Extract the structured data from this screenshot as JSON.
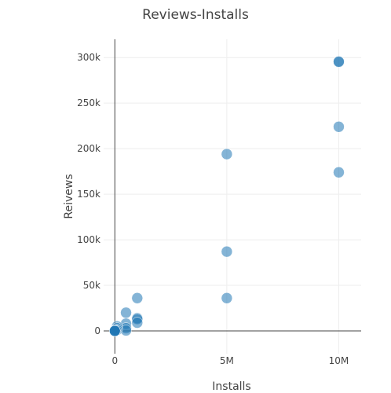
{
  "chart_data": {
    "type": "scatter",
    "title": "Reviews-Installs",
    "xlabel": "Installs",
    "ylabel": "Reivews",
    "xlim": [
      -500000,
      11000000
    ],
    "ylim": [
      -25000,
      320000
    ],
    "xticks": [
      {
        "value": 0,
        "label": "0"
      },
      {
        "value": 5000000,
        "label": "5M"
      },
      {
        "value": 10000000,
        "label": "10M"
      }
    ],
    "yticks": [
      {
        "value": 0,
        "label": "0"
      },
      {
        "value": 50000,
        "label": "50k"
      },
      {
        "value": 100000,
        "label": "100k"
      },
      {
        "value": 150000,
        "label": "150k"
      },
      {
        "value": 200000,
        "label": "200k"
      },
      {
        "value": 250000,
        "label": "250k"
      },
      {
        "value": 300000,
        "label": "300k"
      }
    ],
    "grid": true,
    "series": [
      {
        "color": "#1f77b4",
        "points": [
          {
            "x": 10000000,
            "y": 295000
          },
          {
            "x": 10000000,
            "y": 295500
          },
          {
            "x": 10000000,
            "y": 224000
          },
          {
            "x": 10000000,
            "y": 174000
          },
          {
            "x": 5000000,
            "y": 194000
          },
          {
            "x": 5000000,
            "y": 87000
          },
          {
            "x": 5000000,
            "y": 36000
          },
          {
            "x": 1000000,
            "y": 36000
          },
          {
            "x": 1000000,
            "y": 14000
          },
          {
            "x": 1000000,
            "y": 13000
          },
          {
            "x": 1000000,
            "y": 9000
          },
          {
            "x": 500000,
            "y": 20000
          },
          {
            "x": 500000,
            "y": 8000
          },
          {
            "x": 500000,
            "y": 3000
          },
          {
            "x": 500000,
            "y": 500
          },
          {
            "x": 100000,
            "y": 5000
          },
          {
            "x": 100000,
            "y": 3000
          },
          {
            "x": 100000,
            "y": 1000
          },
          {
            "x": 50000,
            "y": 800
          },
          {
            "x": 10000,
            "y": 300
          },
          {
            "x": 5000,
            "y": 100
          },
          {
            "x": 1000,
            "y": 50
          },
          {
            "x": 0,
            "y": 0
          }
        ]
      }
    ]
  }
}
